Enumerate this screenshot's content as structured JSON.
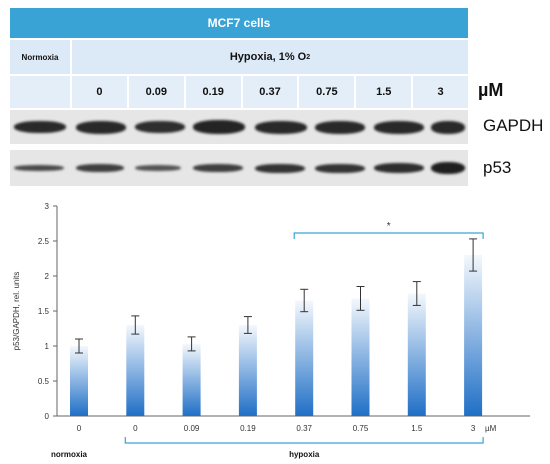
{
  "header": {
    "title": "MCF7 cells",
    "normoxia": "Normoxia",
    "hypoxia": "Hypoxia, 1% O",
    "hypoxia_sub": "2",
    "doses": [
      "0",
      "0.09",
      "0.19",
      "0.37",
      "0.75",
      "1.5",
      "3"
    ],
    "unit": "µM"
  },
  "blots": {
    "gapdh_label": "GAPDH",
    "p53_label": "p53"
  },
  "chart_data": {
    "type": "bar",
    "categories": [
      "0",
      "0",
      "0.09",
      "0.19",
      "0.37",
      "0.75",
      "1.5",
      "3"
    ],
    "values": [
      1.0,
      1.3,
      1.03,
      1.3,
      1.65,
      1.68,
      1.75,
      2.3
    ],
    "errors": [
      0.1,
      0.13,
      0.1,
      0.12,
      0.16,
      0.17,
      0.17,
      0.23
    ],
    "ylabel": "p53/GAPDH, rel. units",
    "ylim": [
      0,
      3
    ],
    "yticks": [
      "0",
      "0.5",
      "1",
      "1.5",
      "2",
      "2.5",
      "3"
    ],
    "x_unit": "µM",
    "group_labels": [
      "normoxia",
      "hypoxia"
    ],
    "significance_mark": "*",
    "bar_color_top": "#f4f8fd",
    "bar_color_bottom": "#1f6fc6",
    "bracket_color": "#3aa3d6"
  }
}
